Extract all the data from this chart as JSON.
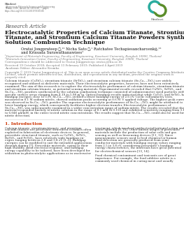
{
  "background_color": "#ffffff",
  "journal_name": "Hindawi",
  "journal_full": "Advances in Materials Science and Engineering",
  "journal_vol": "Volume 2019, Article ID 5810586, 7 pages",
  "journal_doi": "https://doi.org/10.1155/2019/5810586",
  "section_label": "Research Article",
  "title_line1": "Electrocatalytic Properties of Calcium Titanate, Strontium",
  "title_line2": "Titanate, and Strontium Calcium Titanate Powders Synthesized by",
  "title_line3": "Solution Combustion Technique",
  "authors_line1": "Oratai Jongprateep ⓘ,¹² Nicha Sato ⓘ,¹ Ratchatee Techapiesancharoenkij,¹²",
  "authors_line2": "and Krissada Surawathanawises¹",
  "affil1": "¹Department of Materials Engineering, Faculty of Engineering, Kasetsart University, Bangkok 10900, Thailand",
  "affil2": "²Materials Innovation Center, Faculty of Engineering, Kasetsart University, Bangkok 10900, Thailand",
  "correspondence": "Correspondence should be addressed to Oratai Jongprateep; oratai.j@ku.ac.th",
  "received": "Received 19 October 2018; Accepted 13 February 2019; Published 4 April 2019",
  "editor": "Academic Editor: Alexander Kromka",
  "copyright1": "Copyright © 2019 Oratai Jongprateep et al. This is an open access article distributed under the Creative Commons Attribution",
  "copyright2": "License, which permits unrestricted use, distribution, and reproduction in any medium, provided the original work is",
  "copyright3": "properly cited.",
  "abstract_lines": [
    "Calcium titanate (CaTiO₃), strontium titanate (SrTiO₃), and strontium calcium titanate (SrₓCa₁₋ₓTiO₃) are widely",
    "recognized and utilized as dielectric materials. Their electrocatalytic properties, however, have not been extensively",
    "examined. The aim of this research is to explore the electrocatalytic performance of calcium titanate, strontium titanate,",
    "and strontium calcium titanate, as potential sensing materials. Experimental results revealed that CaTiO₃, SrTiO₃, and",
    "SrₓCa₁₋ₓTiO₃ powders synthesized by the solution combustion technique consisted of submicrometer sized particles with",
    "specific surface areas ranging from 4.19 to 5.98 m²/g. Optical bandgap results indicated that while CaTiO₃ and SrTiO₃ had",
    "bandgap energies close to 3 eV, SrₓCa₁₋ₓTiO₃ yielded a lower bandgap energy of 2.6 eV. Cyclic voltammetry tests,",
    "measured in 0.1 M sodium nitrite, showed oxidation peaks occurring at 0.6 M˙V applied voltage. The highest peak current",
    "was observed in SrₓCa₁₋ₓTiO₃ powder. The superior electrocatalytic performance of SrₓCa₁₋ₓTiO₃ might be attributed to",
    "lower bandgap energy, which consequently facilitates higher electron transfer. Electrocatalytic performance of",
    "SrₓCa₁₋ₓTiO₃ was subsequently examined in a wider concentration range of sodium nitrite. The results revealed that the",
    "material responded linearly to nitrite solution in the range of 0.1 mM to 0.150 and exhibited sensitivity ranging from 3.117",
    "to 6.046 μA/mM, in the entire tested nitrite concentrations. The results suggest that SrₓCa₁₋ₓTiO₃ could also be used for",
    "nitrite detection."
  ],
  "intro_title": "1. Introduction",
  "intro_left_lines": [
    "Calcium titanate, strontium titanate, and strontium",
    "calcium titanate are perovskite structured ceramics often",
    "exploited in fabrication of electronic devices. In general,",
    "perovskite structured titanate, such as CaTiO₃, SrTiO₃,",
    "BaTiO₃, and FeTiO₃, have relatively wide bandgap en-",
    "ergies ranging between 2.8 and 3.4 eV [1–6]. Bandgap",
    "energies can be modified to suit the intended applications",
    "through doping [7]. Perovskite materials, owing to their",
    "high stability, good electrical response, and bandgap",
    "energy capability to be tailored, have been developed for",
    "utilization in photocatalytic applications as in wastewater"
  ],
  "intro_right_lines": [
    "treatment, which involved antibacterial/antiviral action and",
    "water splitting [8–10]. Other known usages of perovskite",
    "materials include the production of solar cells and gas",
    "sensing as well as biosensing devices [11, 12]. Since",
    "nonenzymatic sensors used to feed chemical or human",
    "fluid detection are generally produced from semi-",
    "conductor materials with bandgap energy values ranging",
    "from 2.5 to 3.8 eV, considering perovskite’s bandgap",
    "energy characteristics, the materials have great potential",
    "for electrochemical sensors [13, 14].",
    "",
    "Food chemical contaminant and toxicants are of great",
    "importance. For example, the food additive nitrite is a",
    "commonly used chemical in curing meat and usually"
  ],
  "logo_teal": "#2aac9e",
  "logo_green": "#5b8d2a",
  "separator_color": "#cccccc",
  "text_dark": "#1a1a1a",
  "text_medium": "#333333",
  "text_light": "#777777",
  "title_color": "#111111",
  "header_text_color": "#666666",
  "intro_title_color": "#cc3300"
}
